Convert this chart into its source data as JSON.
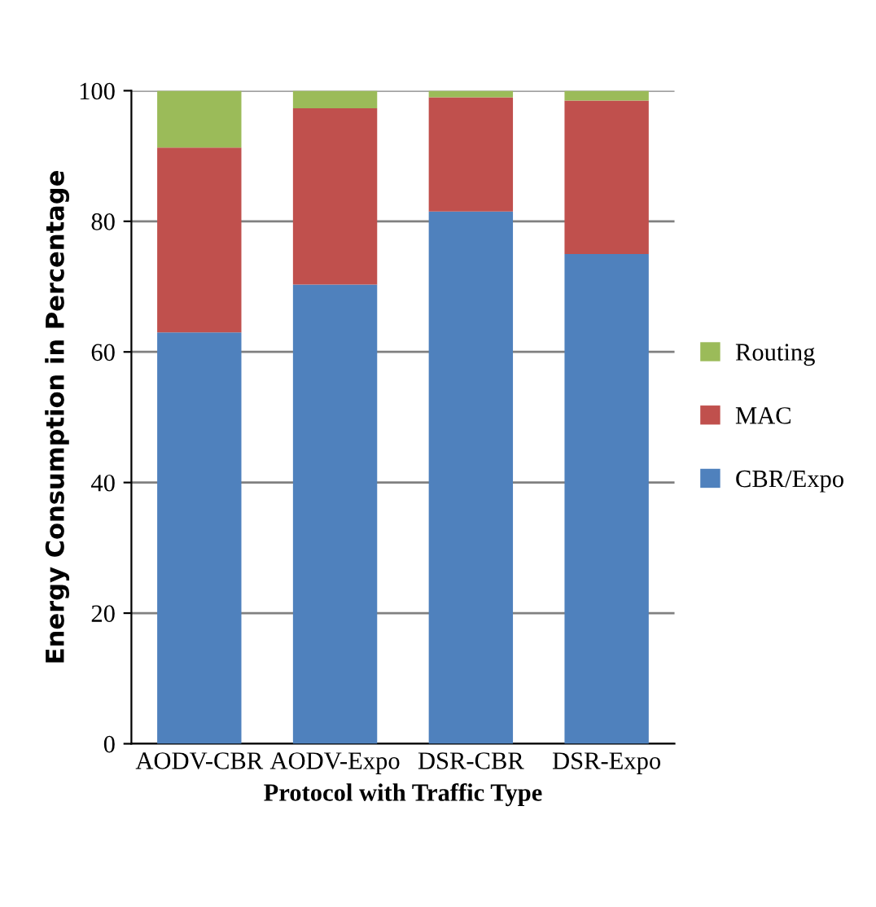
{
  "chart_data": {
    "type": "bar",
    "stacked": true,
    "xlabel": "Protocol with Traffic Type",
    "ylabel": "Energy Consumption in Percentage",
    "categories": [
      "AODV-CBR",
      "AODV-Expo",
      "DSR-CBR",
      "DSR-Expo"
    ],
    "series": [
      {
        "name": "CBR/Expo",
        "color": "#4f81bd",
        "values": [
          63,
          70.3,
          81.5,
          75
        ]
      },
      {
        "name": "MAC",
        "color": "#c0504d",
        "values": [
          28.3,
          27,
          17.5,
          23.5
        ]
      },
      {
        "name": "Routing",
        "color": "#9bbb59",
        "values": [
          8.7,
          2.7,
          1,
          1.5
        ]
      }
    ],
    "ylim": [
      0,
      100
    ],
    "yticks": [
      0,
      20,
      40,
      60,
      80,
      100
    ],
    "grid": "y",
    "legend": "right"
  }
}
